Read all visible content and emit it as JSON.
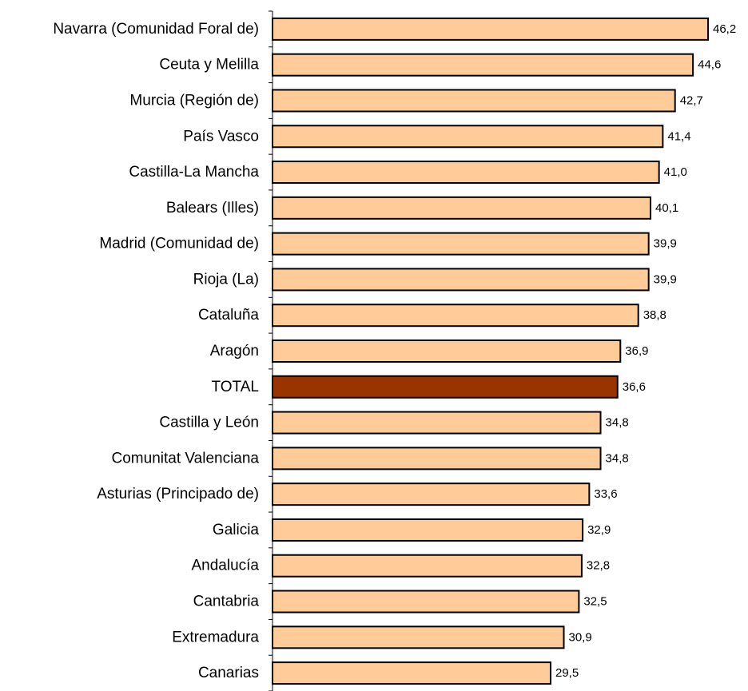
{
  "chart_data": {
    "type": "bar",
    "orientation": "horizontal",
    "title": "",
    "xlabel": "",
    "ylabel": "",
    "xlim": [
      0,
      46.2
    ],
    "grid": false,
    "legend": "none",
    "categories": [
      "Navarra (Comunidad Foral de)",
      "Ceuta y Melilla",
      "Murcia (Región de)",
      "País Vasco",
      "Castilla-La Mancha",
      "Balears (Illes)",
      "Madrid (Comunidad de)",
      "Rioja (La)",
      "Cataluña",
      "Aragón",
      "TOTAL",
      "Castilla y León",
      "Comunitat Valenciana",
      "Asturias (Principado de)",
      "Galicia",
      "Andalucía",
      "Cantabria",
      "Extremadura",
      "Canarias"
    ],
    "values": [
      46.2,
      44.6,
      42.7,
      41.4,
      41.0,
      40.1,
      39.9,
      39.9,
      38.8,
      36.9,
      36.6,
      34.8,
      34.8,
      33.6,
      32.9,
      32.8,
      32.5,
      30.9,
      29.5
    ],
    "value_labels": [
      "46,2",
      "44,6",
      "42,7",
      "41,4",
      "41,0",
      "40,1",
      "39,9",
      "39,9",
      "38,8",
      "36,9",
      "36,6",
      "34,8",
      "34,8",
      "33,6",
      "32,9",
      "32,8",
      "32,5",
      "30,9",
      "29,5"
    ],
    "highlight_category": "TOTAL",
    "colors": {
      "bar": "#FFCC99",
      "highlight": "#993300",
      "outline": "#000000",
      "axis": "#000000",
      "text": "#000000"
    }
  }
}
